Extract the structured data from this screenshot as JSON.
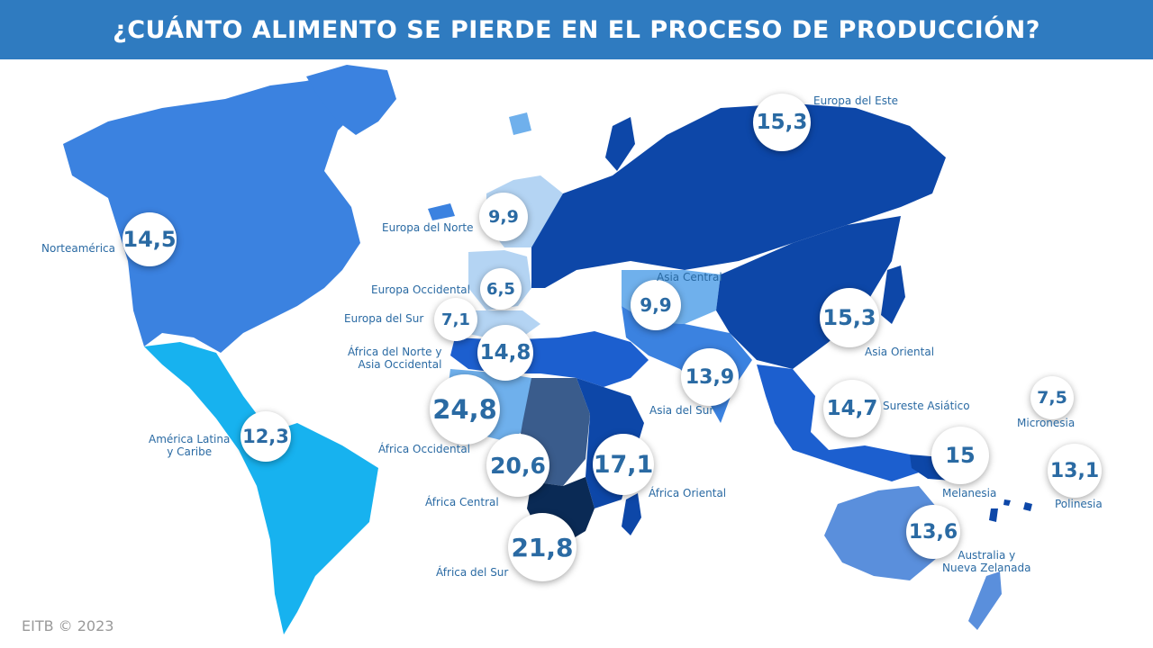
{
  "title": "¿CUÁNTO ALIMENTO SE PIERDE EN EL PROCESO DE PRODUCCIÓN?",
  "credit": "EITB © 2023",
  "colors": {
    "banner": "#2f7bc0",
    "value_text": "#2a6aa3",
    "scale_lightest": "#b4d4f3",
    "scale_light": "#6fb0ec",
    "scale_mid": "#3b82e0",
    "scale_strong": "#1c5fcf",
    "scale_dark": "#0d47a8",
    "scale_darkest": "#0a2a55",
    "latin_america": "#17b2ef"
  },
  "regions": [
    {
      "id": "norteamerica",
      "name": "Norteamérica",
      "value": "14,5"
    },
    {
      "id": "america-latina",
      "name": "América Latina\ny Caribe",
      "value": "12,3"
    },
    {
      "id": "europa-norte",
      "name": "Europa del Norte",
      "value": "9,9"
    },
    {
      "id": "europa-occidental",
      "name": "Europa Occidental",
      "value": "6,5"
    },
    {
      "id": "europa-sur",
      "name": "Europa del Sur",
      "value": "7,1"
    },
    {
      "id": "africa-norte",
      "name": "África del Norte y\nAsia Occidental",
      "value": "14,8"
    },
    {
      "id": "africa-occidental",
      "name": "África Occidental",
      "value": "24,8"
    },
    {
      "id": "africa-central",
      "name": "África Central",
      "value": "20,6"
    },
    {
      "id": "africa-oriental",
      "name": "África Oriental",
      "value": "17,1"
    },
    {
      "id": "africa-sur",
      "name": "África del Sur",
      "value": "21,8"
    },
    {
      "id": "europa-este",
      "name": "Europa del Este",
      "value": "15,3"
    },
    {
      "id": "asia-central",
      "name": "Asia Central",
      "value": "9,9"
    },
    {
      "id": "asia-oriental",
      "name": "Asia Oriental",
      "value": "15,3"
    },
    {
      "id": "asia-sur",
      "name": "Asia del Sur",
      "value": "13,9"
    },
    {
      "id": "sureste-asiatico",
      "name": "Sureste Asiático",
      "value": "14,7"
    },
    {
      "id": "micronesia",
      "name": "Micronesia",
      "value": "7,5"
    },
    {
      "id": "melanesia",
      "name": "Melanesia",
      "value": "15"
    },
    {
      "id": "polinesia",
      "name": "Polinesia",
      "value": "13,1"
    },
    {
      "id": "australia",
      "name": "Australia y\nNueva Zelanada",
      "value": "13,6"
    }
  ]
}
